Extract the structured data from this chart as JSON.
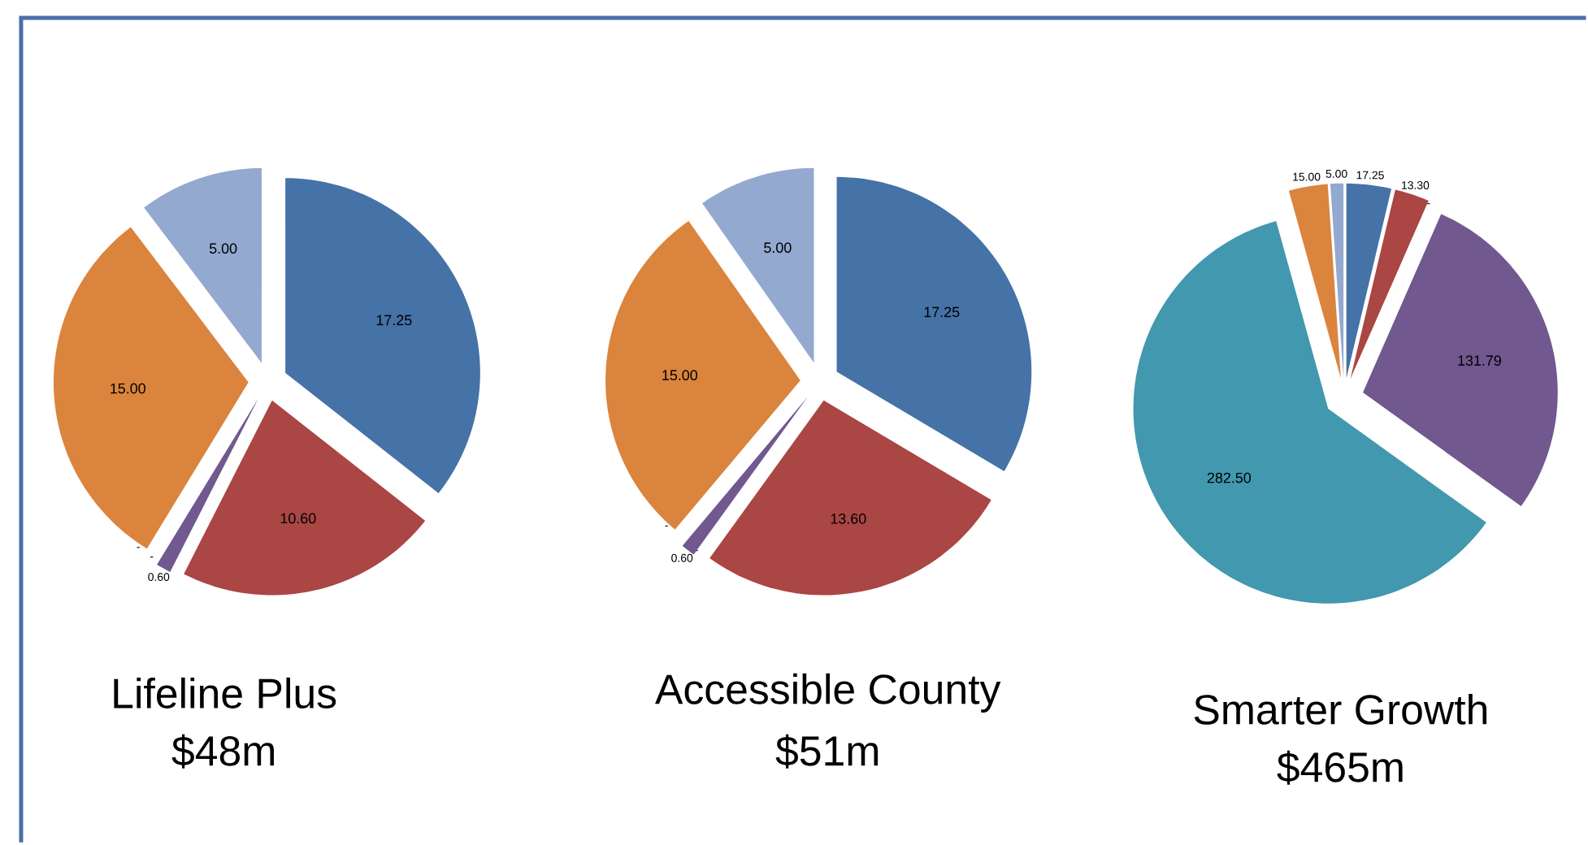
{
  "chart_data": [
    {
      "type": "pie",
      "title": "Lifeline Plus",
      "subtitle": "$48m",
      "categories": [
        null,
        null,
        null,
        null,
        null,
        null,
        null
      ],
      "values": [
        17.25,
        10.6,
        0,
        0.6,
        0,
        15.0,
        5.0
      ],
      "colors": [
        "#4572a7",
        "#aa4643",
        "#89a54e",
        "#71588f",
        "#4198af",
        "#db843d",
        "#93a9cf"
      ],
      "value_labels": [
        "17.25",
        "10.60",
        "-",
        "0.60",
        "-",
        "15.00",
        "5.00"
      ]
    },
    {
      "type": "pie",
      "title": "Accessible County",
      "subtitle": "$51m",
      "categories": [
        null,
        null,
        null,
        null,
        null,
        null,
        null
      ],
      "values": [
        17.25,
        13.6,
        0,
        0.6,
        0,
        15.0,
        5.0
      ],
      "colors": [
        "#4572a7",
        "#aa4643",
        "#89a54e",
        "#71588f",
        "#4198af",
        "#db843d",
        "#93a9cf"
      ],
      "value_labels": [
        "17.25",
        "13.60",
        "-",
        "0.60",
        "-",
        "15.00",
        "5.00"
      ]
    },
    {
      "type": "pie",
      "title": "Smarter Growth",
      "subtitle": "$465m",
      "categories": [
        null,
        null,
        null,
        null,
        null,
        null,
        null
      ],
      "values": [
        17.25,
        13.3,
        0,
        131.79,
        282.5,
        15.0,
        5.0
      ],
      "colors": [
        "#4572a7",
        "#aa4643",
        "#89a54e",
        "#71588f",
        "#4198af",
        "#db843d",
        "#93a9cf"
      ],
      "value_labels": [
        "17.25",
        "13.30",
        "-",
        "131.79",
        "282.50",
        "15.00",
        "5.00"
      ]
    }
  ]
}
